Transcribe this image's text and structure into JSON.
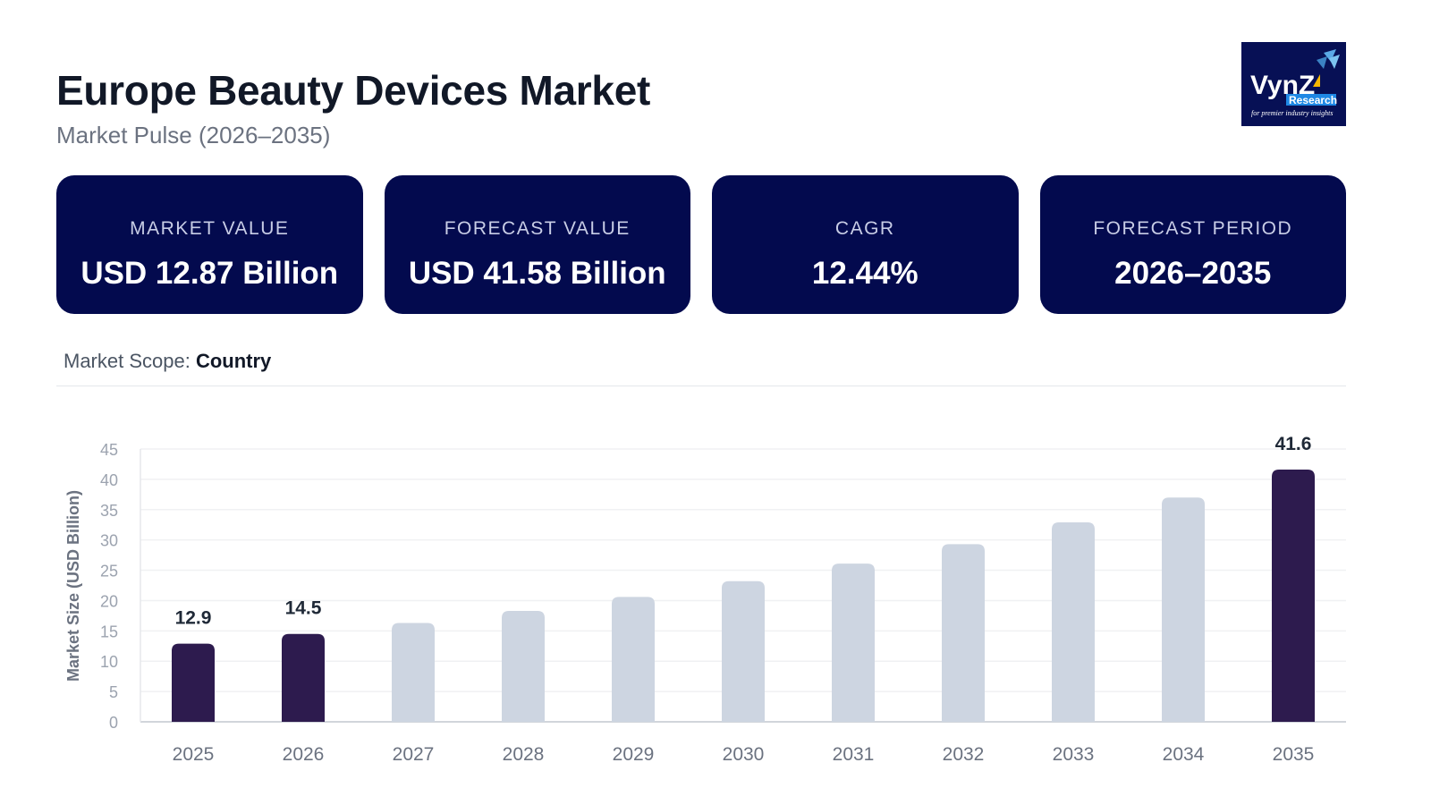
{
  "header": {
    "title": "Europe Beauty Devices Market",
    "subtitle": "Market Pulse (2026–2035)"
  },
  "logo": {
    "text": "VynZ",
    "sub": "Research",
    "tagline": "for premier industry insights"
  },
  "cards": [
    {
      "label": "MARKET VALUE",
      "value": "USD 12.87 Billion"
    },
    {
      "label": "FORECAST VALUE",
      "value": "USD 41.58 Billion"
    },
    {
      "label": "CAGR",
      "value": "12.44%"
    },
    {
      "label": "FORECAST PERIOD",
      "value": "2026–2035"
    }
  ],
  "scope": {
    "label": "Market Scope:",
    "value": "Country"
  },
  "colors": {
    "card": "#030a4e",
    "highlight_bar": "#2d1b4e",
    "bar": "#cdd5e1"
  },
  "chart_data": {
    "type": "bar",
    "title": "",
    "xlabel": "",
    "ylabel": "Market Size (USD Billion)",
    "ylim": [
      0,
      45
    ],
    "yticks": [
      0,
      5,
      10,
      15,
      20,
      25,
      30,
      35,
      40,
      45
    ],
    "grid": true,
    "categories": [
      "2025",
      "2026",
      "2027",
      "2028",
      "2029",
      "2030",
      "2031",
      "2032",
      "2033",
      "2034",
      "2035"
    ],
    "values": [
      12.9,
      14.5,
      16.3,
      18.3,
      20.6,
      23.2,
      26.1,
      29.3,
      32.9,
      37.0,
      41.6
    ],
    "highlighted": [
      "2025",
      "2026",
      "2035"
    ],
    "data_labels": {
      "2025": "12.9",
      "2026": "14.5",
      "2035": "41.6"
    }
  }
}
